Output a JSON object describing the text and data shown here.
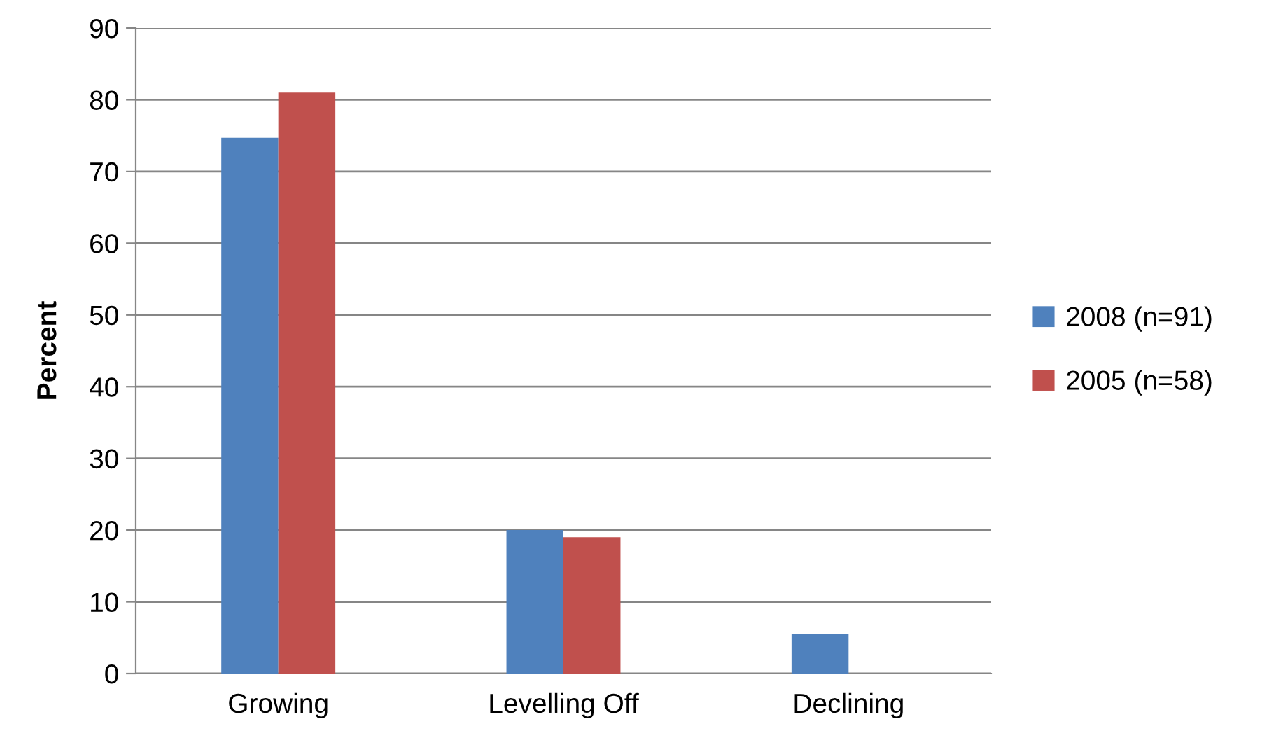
{
  "chart_data": {
    "type": "bar",
    "ylabel": "Percent",
    "categories": [
      "Growing",
      "Levelling Off",
      "Declining"
    ],
    "series": [
      {
        "name": "2008 (n=91)",
        "color": "#4f81bd",
        "values": [
          74.7,
          20,
          5.5
        ]
      },
      {
        "name": "2005 (n=58)",
        "color": "#c0504d",
        "values": [
          81,
          19,
          null
        ]
      }
    ],
    "ylim": [
      0,
      90
    ],
    "yticks": [
      0,
      10,
      20,
      30,
      40,
      50,
      60,
      70,
      80,
      90
    ],
    "grid": "y",
    "legend": "right"
  }
}
